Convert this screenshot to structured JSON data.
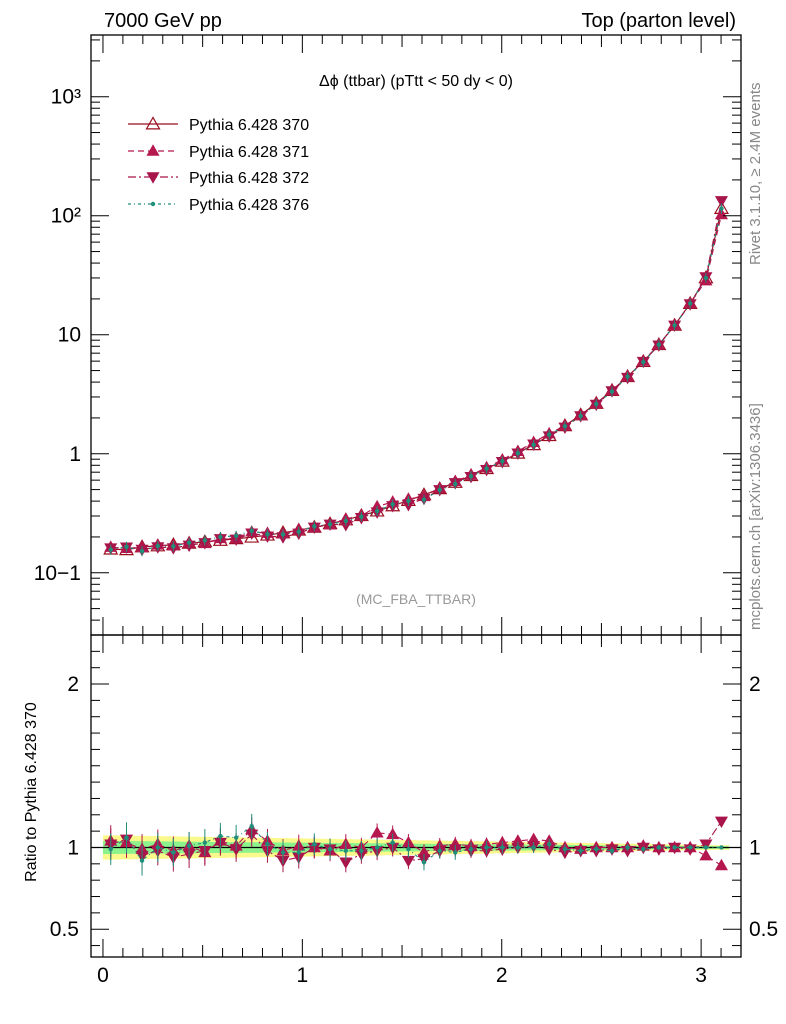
{
  "header": {
    "left": "7000 GeV pp",
    "right": "Top (parton level)"
  },
  "plot": {
    "title": "Δϕ (ttbar) (pTtt < 50 dy < 0)",
    "watermark": "(MC_FBA_TTBAR)",
    "side_top": "Rivet 3.1.10, ≥ 2.4M events",
    "side_bottom": "mcplots.cern.ch [arXiv:1306.3436]",
    "ratio_ylabel": "Ratio to Pythia 6.428 370"
  },
  "colors": {
    "s370": "#9b0d1d",
    "s371": "#b5174f",
    "s372": "#a8154a",
    "s376": "#1f8f7a",
    "band_yellow": "#fafa8c",
    "band_green": "#8cf28c"
  },
  "chart_data": {
    "type": "line",
    "x_label": "",
    "y_scale": "log",
    "ylim": [
      0.03,
      3300
    ],
    "xlim": [
      -0.06,
      3.2
    ],
    "ratio_ylim": [
      0.33,
      2.3
    ],
    "y_tick_labels": [
      "10−1",
      "1",
      "10",
      "10²",
      "10³"
    ],
    "x_tick_labels": [
      "0",
      "1",
      "2",
      "3"
    ],
    "ratio_tick_labels": [
      "0.5",
      "1",
      "2"
    ],
    "x": [
      0.039,
      0.118,
      0.196,
      0.275,
      0.353,
      0.432,
      0.511,
      0.589,
      0.668,
      0.746,
      0.825,
      0.903,
      0.982,
      1.06,
      1.139,
      1.218,
      1.296,
      1.375,
      1.453,
      1.532,
      1.61,
      1.689,
      1.767,
      1.846,
      1.924,
      2.003,
      2.081,
      2.16,
      2.238,
      2.317,
      2.396,
      2.474,
      2.553,
      2.631,
      2.71,
      2.788,
      2.867,
      2.945,
      3.024,
      3.102
    ],
    "series": [
      {
        "name": "Pythia 6.428 370",
        "marker": "open-triangle-up",
        "values": [
          0.158,
          0.156,
          0.165,
          0.168,
          0.172,
          0.177,
          0.182,
          0.187,
          0.193,
          0.199,
          0.207,
          0.217,
          0.228,
          0.241,
          0.258,
          0.278,
          0.302,
          0.33,
          0.365,
          0.405,
          0.452,
          0.508,
          0.575,
          0.655,
          0.75,
          0.865,
          1.01,
          1.19,
          1.42,
          1.72,
          2.12,
          2.65,
          3.4,
          4.45,
          5.95,
          8.25,
          12.0,
          18.3,
          30.0,
          115.0
        ]
      },
      {
        "name": "Pythia 6.428 371",
        "marker": "triangle-up",
        "ratio": [
          1.04,
          1.03,
          0.99,
          1.02,
          0.98,
          1.01,
          0.97,
          1.04,
          1.01,
          1.11,
          1.04,
          0.98,
          1.01,
          1.0,
          0.98,
          1.02,
          1.0,
          1.09,
          1.08,
          1.03,
          0.97,
          1.01,
          1.02,
          1.01,
          1.02,
          1.03,
          1.04,
          1.05,
          1.04,
          1.0,
          0.99,
          1.0,
          1.0,
          1.0,
          1.01,
          1.0,
          1.0,
          1.0,
          0.95,
          0.89
        ]
      },
      {
        "name": "Pythia 6.428 372",
        "marker": "triangle-down",
        "ratio": [
          1.02,
          1.05,
          0.95,
          0.98,
          0.94,
          0.96,
          0.98,
          1.03,
          0.99,
          1.08,
          0.98,
          0.92,
          0.94,
          1.0,
          0.99,
          0.91,
          0.96,
          0.98,
          1.0,
          0.92,
          0.93,
          0.98,
          0.99,
          0.98,
          0.98,
          0.99,
          1.0,
          1.01,
          0.99,
          0.97,
          0.98,
          0.98,
          0.99,
          0.98,
          1.0,
          0.99,
          1.0,
          0.99,
          1.02,
          1.16
        ]
      },
      {
        "name": "Pythia 6.428 376",
        "marker": "dot",
        "ratio": [
          0.99,
          1.06,
          0.92,
          1.0,
          0.97,
          1.01,
          1.03,
          1.07,
          1.06,
          1.13,
          1.02,
          0.97,
          0.97,
          1.02,
          0.99,
          0.98,
          0.98,
          1.0,
          1.03,
          0.99,
          0.91,
          0.98,
          0.97,
          0.99,
          1.0,
          1.0,
          1.0,
          1.0,
          1.02,
          0.99,
          0.98,
          0.99,
          0.98,
          1.0,
          0.99,
          1.0,
          1.0,
          1.0,
          1.0,
          1.0
        ]
      }
    ]
  }
}
